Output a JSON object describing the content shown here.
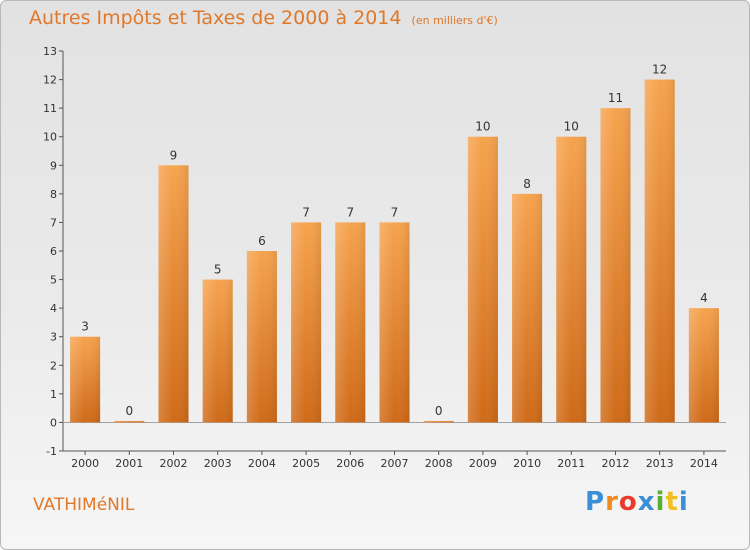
{
  "header": {
    "title": "Autres Impôts et Taxes de 2000 à 2014",
    "unit": "(en milliers d'€)"
  },
  "footer": {
    "commune": "VATHIMéNIL",
    "logo_letters": [
      "P",
      "r",
      "o",
      "x",
      "i",
      "t",
      "i"
    ],
    "logo_colors": [
      "#3a8fd8",
      "#f08a1c",
      "#e83b2c",
      "#3a8fd8",
      "#58b030",
      "#f0c020",
      "#3a8fd8"
    ]
  },
  "chart_data": {
    "type": "bar",
    "title": "Autres Impôts et Taxes de 2000 à 2014",
    "subtitle": "(en milliers d'€)",
    "xlabel": "",
    "ylabel": "",
    "categories": [
      "2000",
      "2001",
      "2002",
      "2003",
      "2004",
      "2005",
      "2006",
      "2007",
      "2008",
      "2009",
      "2010",
      "2011",
      "2012",
      "2013",
      "2014"
    ],
    "values": [
      3,
      0,
      9,
      5,
      6,
      7,
      7,
      7,
      0,
      10,
      8,
      10,
      11,
      12,
      4
    ],
    "ylim": [
      -1,
      13
    ],
    "yticks": [
      -1,
      0,
      1,
      2,
      3,
      4,
      5,
      6,
      7,
      8,
      9,
      10,
      11,
      12,
      13
    ],
    "grid": false,
    "bar_color": "#f0902c",
    "bar_color_dark": "#d06c1a"
  }
}
